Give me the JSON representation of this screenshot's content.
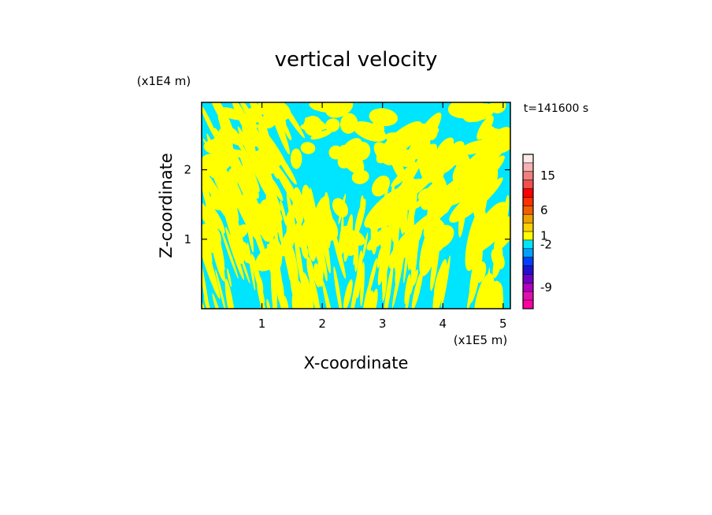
{
  "chart_data": {
    "type": "heatmap",
    "title": "vertical velocity",
    "xlabel": "X-coordinate",
    "ylabel": "Z-coordinate",
    "x_unit": "(x1E5 m)",
    "y_unit": "(x1E4 m)",
    "time_label": "t=141600 s",
    "xlim": [
      0,
      5.12
    ],
    "ylim": [
      0,
      2.97
    ],
    "x_ticks": [
      1,
      2,
      3,
      4,
      5
    ],
    "y_ticks": [
      1,
      2
    ],
    "field_colors": {
      "positive": "#ffff00",
      "negative": "#00e5ff"
    },
    "colorbar": {
      "colors": [
        "#ff00a0",
        "#e010b0",
        "#b000c0",
        "#7000c8",
        "#2010d0",
        "#0040ff",
        "#00a0ff",
        "#00e5ff",
        "#ffff00",
        "#ffd000",
        "#f0a000",
        "#f06000",
        "#ff3000",
        "#ff0000",
        "#f05050",
        "#f08080",
        "#f8b0b0",
        "#fde8e8"
      ],
      "tick_labels": [
        {
          "label": "-9",
          "level": 2
        },
        {
          "label": "-2",
          "level": 7
        },
        {
          "label": "1",
          "level": 8
        },
        {
          "label": "6",
          "level": 11
        },
        {
          "label": "15",
          "level": 15
        }
      ]
    }
  }
}
